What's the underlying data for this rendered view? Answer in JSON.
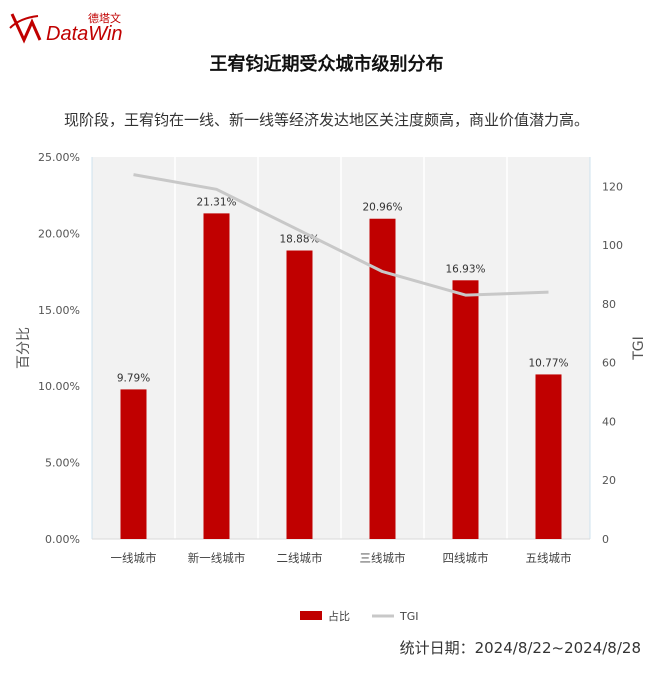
{
  "brand": {
    "cn": "德塔文",
    "en": "DataWin"
  },
  "title": "王宥钧近期受众城市级别分布",
  "subtitle": "现阶段，王宥钧在一线、新一线等经济发达地区关注度颇高，商业价值潜力高。",
  "footer": "统计日期：2024/8/22~2024/8/28",
  "colors": {
    "bar": "#c00000",
    "line": "#c8c8c8",
    "plot_bg": "#f2f2f2"
  },
  "chart_data": {
    "type": "bar",
    "categories": [
      "一线城市",
      "新一线城市",
      "二线城市",
      "三线城市",
      "四线城市",
      "五线城市"
    ],
    "series": [
      {
        "name": "占比",
        "type": "bar",
        "axis": "left",
        "values": [
          9.79,
          21.31,
          18.88,
          20.96,
          16.93,
          10.77
        ],
        "labels": [
          "9.79%",
          "21.31%",
          "18.88%",
          "20.96%",
          "16.93%",
          "10.77%"
        ]
      },
      {
        "name": "TGI",
        "type": "line",
        "axis": "right",
        "values": [
          124,
          119,
          105,
          91,
          83,
          84
        ]
      }
    ],
    "ylabel": "百分比",
    "ylabel_right": "TGI",
    "ylim": [
      0,
      25
    ],
    "ylim_right": [
      0,
      130
    ],
    "yticks": [
      "0.00%",
      "5.00%",
      "10.00%",
      "15.00%",
      "20.00%",
      "25.00%"
    ],
    "yticks_values": [
      0,
      5,
      10,
      15,
      20,
      25
    ],
    "yticks_right": [
      "0",
      "20",
      "40",
      "60",
      "80",
      "100",
      "120"
    ],
    "yticks_right_values": [
      0,
      20,
      40,
      60,
      80,
      100,
      120
    ],
    "grid": true,
    "legend": "bottom-center"
  }
}
